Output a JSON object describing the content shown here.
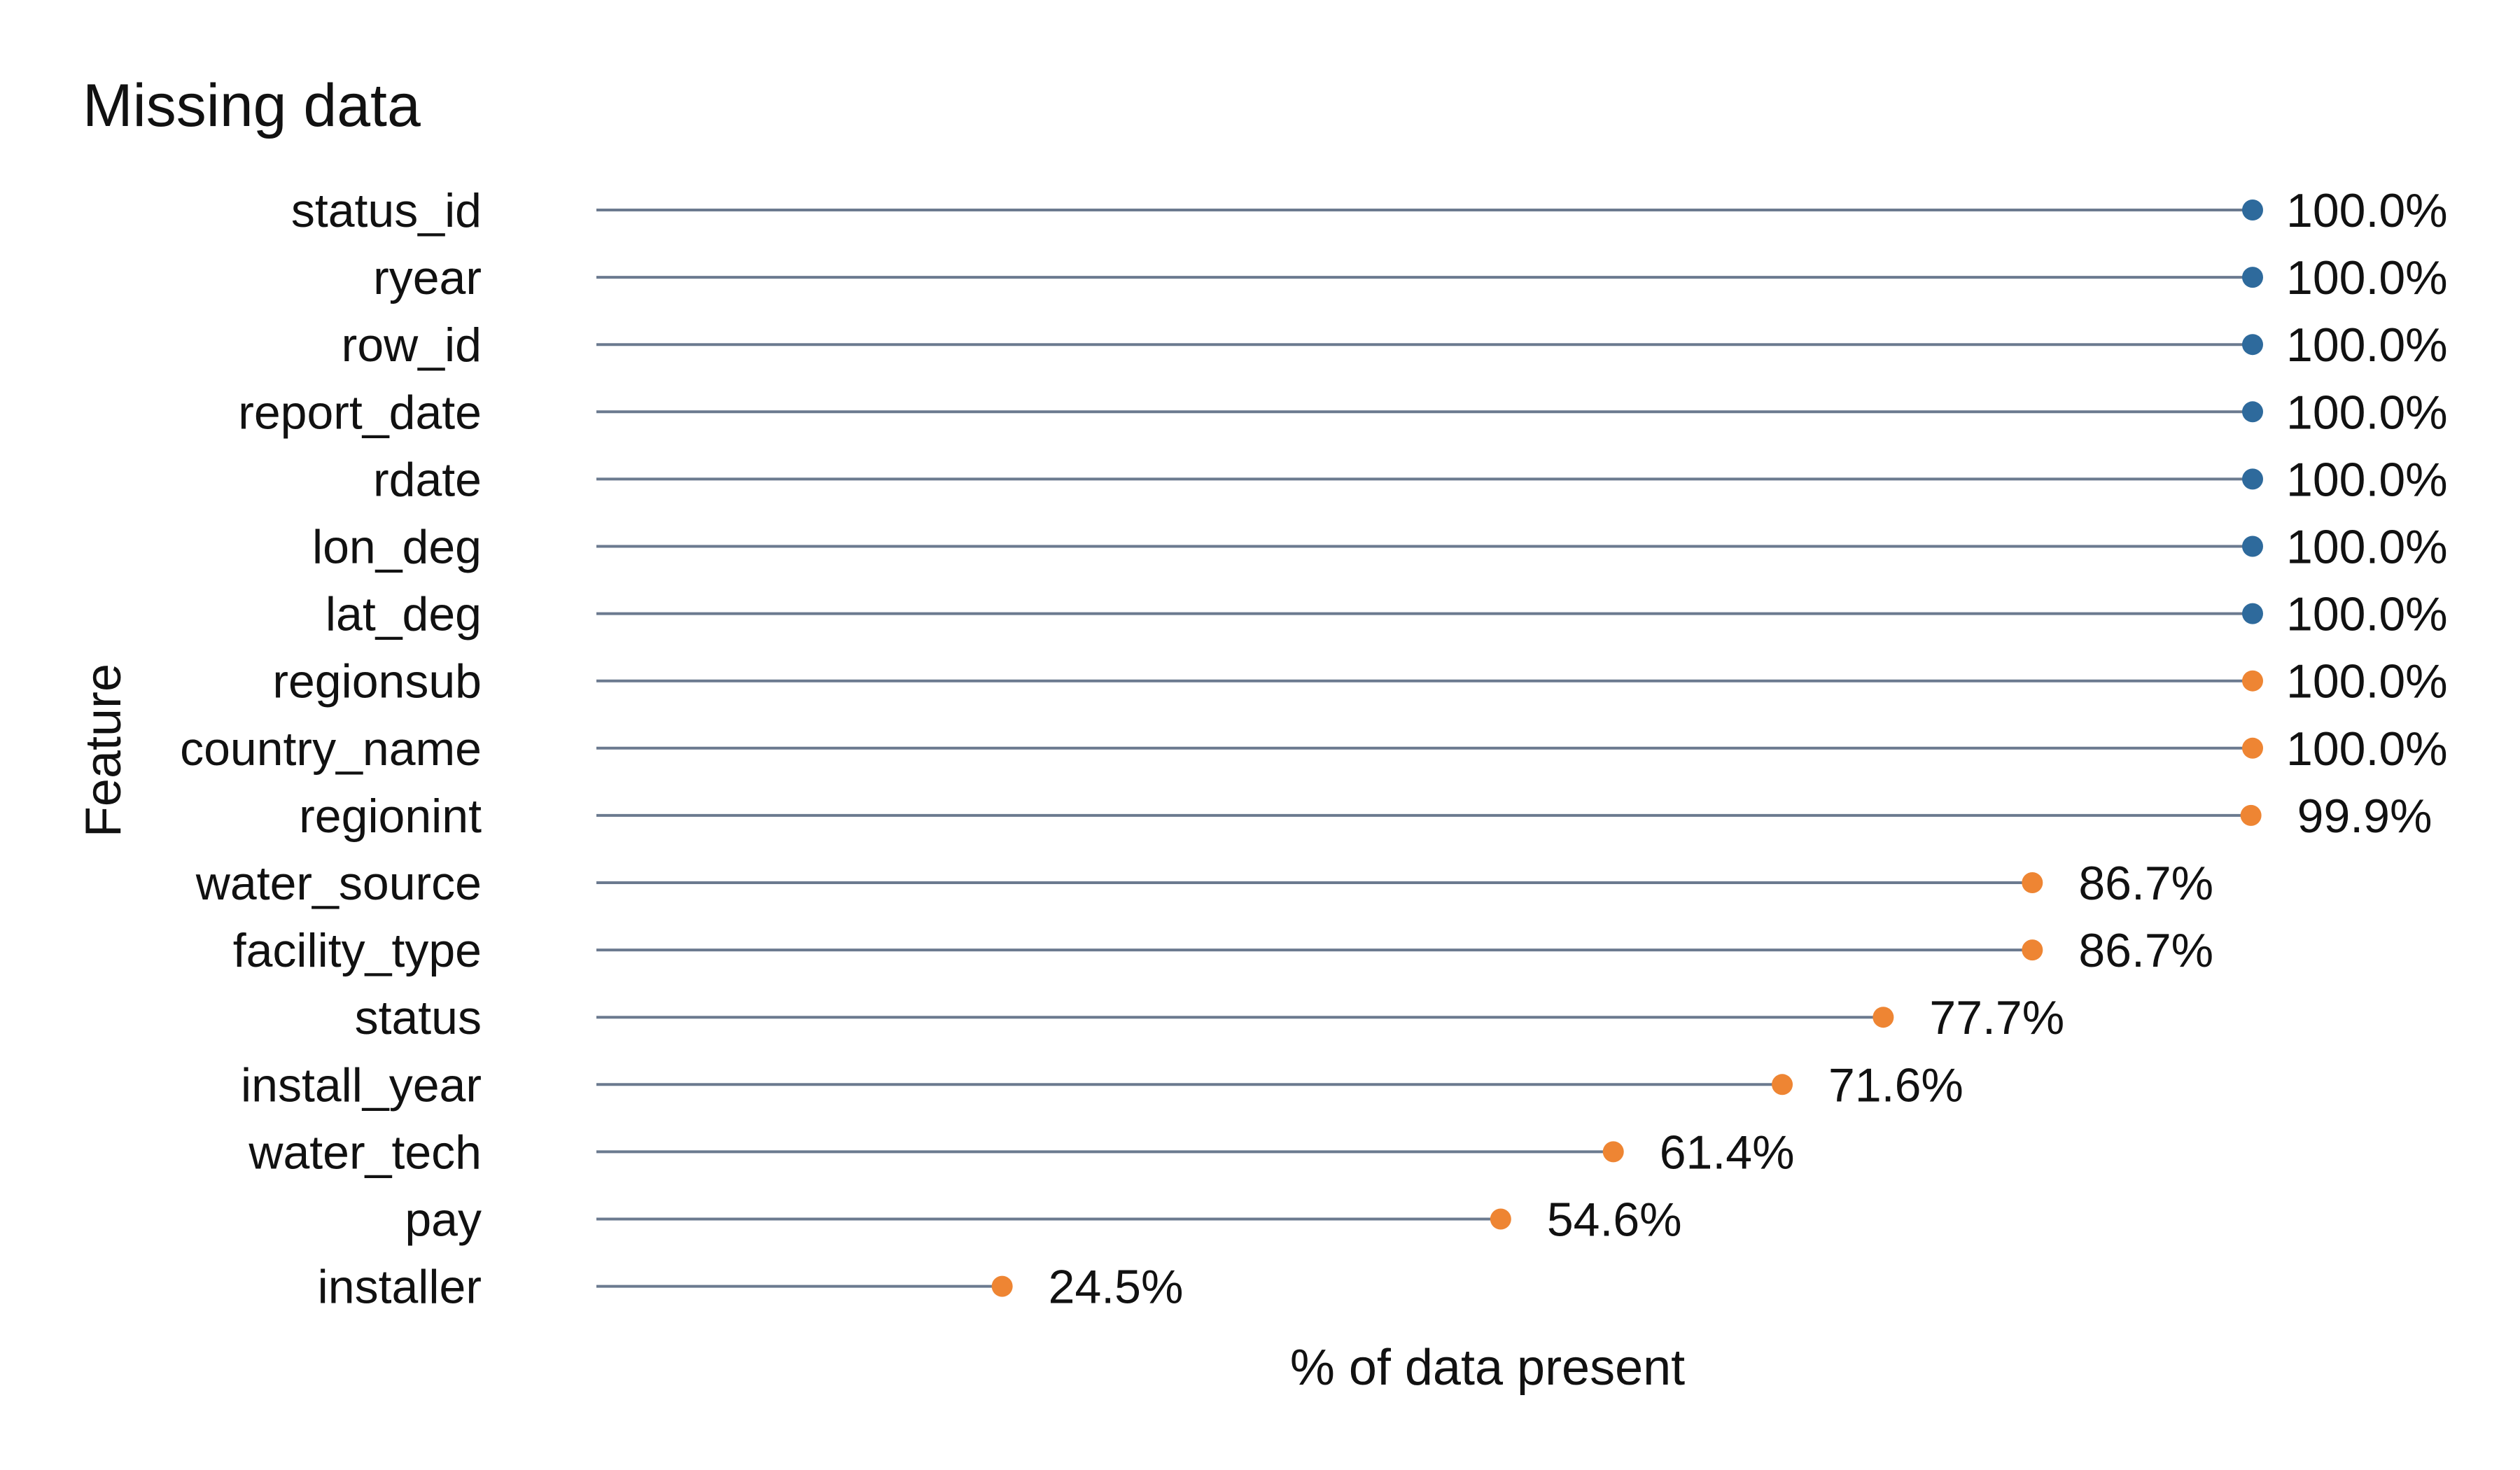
{
  "chart_data": {
    "type": "lollipop",
    "title": "Missing data",
    "xlabel": "% of data present",
    "ylabel": "Feature",
    "xlim": [
      0,
      100
    ],
    "categories": [
      "status_id",
      "ryear",
      "row_id",
      "report_date",
      "rdate",
      "lon_deg",
      "lat_deg",
      "regionsub",
      "country_name",
      "regionint",
      "water_source",
      "facility_type",
      "status",
      "install_year",
      "water_tech",
      "pay",
      "installer"
    ],
    "values": [
      100.0,
      100.0,
      100.0,
      100.0,
      100.0,
      100.0,
      100.0,
      100.0,
      100.0,
      99.9,
      86.7,
      86.7,
      77.7,
      71.6,
      61.4,
      54.6,
      24.5
    ],
    "value_labels": [
      "100.0%",
      "100.0%",
      "100.0%",
      "100.0%",
      "100.0%",
      "100.0%",
      "100.0%",
      "100.0%",
      "100.0%",
      "99.9%",
      "86.7%",
      "86.7%",
      "77.7%",
      "71.6%",
      "61.4%",
      "54.6%",
      "24.5%"
    ],
    "point_colors": [
      "#2E6A9C",
      "#2E6A9C",
      "#2E6A9C",
      "#2E6A9C",
      "#2E6A9C",
      "#2E6A9C",
      "#2E6A9C",
      "#EE8533",
      "#EE8533",
      "#EE8533",
      "#EE8533",
      "#EE8533",
      "#EE8533",
      "#EE8533",
      "#EE8533",
      "#EE8533",
      "#EE8533"
    ],
    "line_color": "#6B7A8F",
    "grid": false,
    "legend": "none"
  }
}
